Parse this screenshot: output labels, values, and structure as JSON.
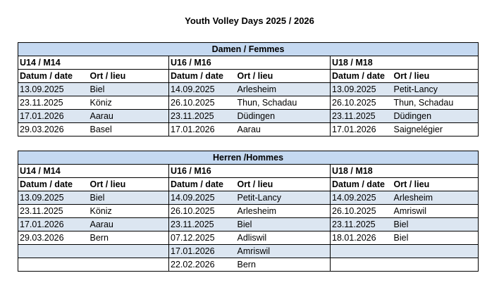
{
  "title": "Youth Volley Days 2025 / 2026",
  "col_date": "Datum / date",
  "col_place": "Ort / lieu",
  "sections": [
    {
      "heading": "Damen / Femmes",
      "groups": [
        "U14 / M14",
        "U16 / M16",
        "U18 / M18"
      ],
      "rows": [
        [
          "13.09.2025",
          "Biel",
          "14.09.2025",
          "Arlesheim",
          "13.09.2025",
          "Petit-Lancy"
        ],
        [
          "23.11.2025",
          "Köniz",
          "26.10.2025",
          "Thun, Schadau",
          "26.10.2025",
          "Thun, Schadau"
        ],
        [
          "17.01.2026",
          "Aarau",
          "23.11.2025",
          "Düdingen",
          "23.11.2025",
          "Düdingen"
        ],
        [
          "29.03.2026",
          "Basel",
          "17.01.2026",
          "Aarau",
          "17.01.2026",
          "Saignelégier"
        ]
      ]
    },
    {
      "heading": "Herren /Hommes",
      "groups": [
        "U14 / M14",
        "U16 / M16",
        "U18 / M18"
      ],
      "rows": [
        [
          "13.09.2025",
          "Biel",
          "14.09.2025",
          "Petit-Lancy",
          "14.09.2025",
          "Arlesheim"
        ],
        [
          "23.11.2025",
          "Köniz",
          "26.10.2025",
          "Arlesheim",
          "26.10.2025",
          "Amriswil"
        ],
        [
          "17.01.2026",
          "Aarau",
          "23.11.2025",
          "Biel",
          "23.11.2025",
          "Biel"
        ],
        [
          "29.03.2026",
          "Bern",
          "07.12.2025",
          "Adliswil",
          "18.01.2026",
          "Biel"
        ],
        [
          "",
          "",
          "17.01.2026",
          "Amriswil",
          "",
          ""
        ],
        [
          "",
          "",
          "22.02.2026",
          "Bern",
          "",
          ""
        ]
      ]
    }
  ]
}
